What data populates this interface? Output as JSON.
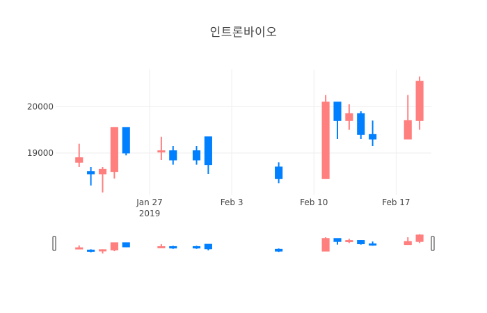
{
  "chart_data": {
    "type": "candlestick",
    "title": "인트론바이오",
    "xlabel": "",
    "ylabel": "",
    "increasing_color": "#ff7f7f",
    "decreasing_color": "#007fff",
    "grid": true,
    "rangeslider": true,
    "x_range": [
      "2019-01-19",
      "2019-02-20"
    ],
    "y_range": [
      18100,
      20800
    ],
    "x_ticks": [
      {
        "date": "2019-01-27",
        "label": "Jan 27",
        "sublabel": "2019"
      },
      {
        "date": "2019-02-03",
        "label": "Feb 3",
        "sublabel": ""
      },
      {
        "date": "2019-02-10",
        "label": "Feb 10",
        "sublabel": ""
      },
      {
        "date": "2019-02-17",
        "label": "Feb 17",
        "sublabel": ""
      }
    ],
    "y_ticks": [
      {
        "value": 19000,
        "label": "19000"
      },
      {
        "value": 20000,
        "label": "20000"
      }
    ],
    "candles": [
      {
        "date": "2019-01-21",
        "open": 18800,
        "high": 19200,
        "low": 18700,
        "close": 18900
      },
      {
        "date": "2019-01-22",
        "open": 18600,
        "high": 18700,
        "low": 18300,
        "close": 18550
      },
      {
        "date": "2019-01-23",
        "open": 18550,
        "high": 18700,
        "low": 18150,
        "close": 18650
      },
      {
        "date": "2019-01-24",
        "open": 18600,
        "high": 19550,
        "low": 18450,
        "close": 19550
      },
      {
        "date": "2019-01-25",
        "open": 19550,
        "high": 19550,
        "low": 18950,
        "close": 19000
      },
      {
        "date": "2019-01-28",
        "open": 19050,
        "high": 19350,
        "low": 18850,
        "close": 19050
      },
      {
        "date": "2019-01-29",
        "open": 19050,
        "high": 19150,
        "low": 18750,
        "close": 18850
      },
      {
        "date": "2019-01-31",
        "open": 19050,
        "high": 19150,
        "low": 18750,
        "close": 18850
      },
      {
        "date": "2019-02-01",
        "open": 19350,
        "high": 19350,
        "low": 18550,
        "close": 18750
      },
      {
        "date": "2019-02-07",
        "open": 18700,
        "high": 18800,
        "low": 18350,
        "close": 18450
      },
      {
        "date": "2019-02-11",
        "open": 18450,
        "high": 20250,
        "low": 18450,
        "close": 20100
      },
      {
        "date": "2019-02-12",
        "open": 20100,
        "high": 20100,
        "low": 19300,
        "close": 19700
      },
      {
        "date": "2019-02-13",
        "open": 19700,
        "high": 20050,
        "low": 19500,
        "close": 19850
      },
      {
        "date": "2019-02-14",
        "open": 19850,
        "high": 19900,
        "low": 19300,
        "close": 19400
      },
      {
        "date": "2019-02-15",
        "open": 19400,
        "high": 19700,
        "low": 19150,
        "close": 19300
      },
      {
        "date": "2019-02-18",
        "open": 19300,
        "high": 20250,
        "low": 19300,
        "close": 19700
      },
      {
        "date": "2019-02-19",
        "open": 19700,
        "high": 20650,
        "low": 19500,
        "close": 20550
      }
    ]
  }
}
